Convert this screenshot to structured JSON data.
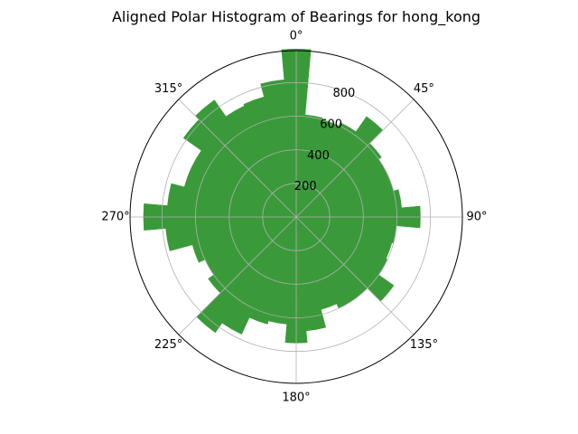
{
  "chart_data": {
    "type": "polar-bar",
    "title": "Aligned Polar Histogram of Bearings for hong_kong",
    "theta_zero": "N",
    "theta_direction": "clockwise",
    "angle_tick_labels": [
      "0°",
      "45°",
      "90°",
      "135°",
      "180°",
      "225°",
      "270°",
      "315°"
    ],
    "angle_ticks_deg": [
      0,
      45,
      90,
      135,
      180,
      225,
      270,
      315
    ],
    "radial_tick_labels": [
      "200",
      "400",
      "600",
      "800"
    ],
    "radial_ticks": [
      200,
      400,
      600,
      800
    ],
    "rlim": [
      0,
      990
    ],
    "grid": true,
    "bar_color": "#3a9a3a",
    "bin_width_deg": 10,
    "bin_centers_deg": [
      0,
      10,
      20,
      30,
      40,
      50,
      60,
      70,
      80,
      90,
      100,
      110,
      120,
      130,
      140,
      150,
      160,
      170,
      180,
      190,
      200,
      210,
      220,
      230,
      240,
      250,
      260,
      270,
      280,
      290,
      300,
      310,
      320,
      330,
      340,
      350
    ],
    "values": [
      1000,
      610,
      600,
      620,
      730,
      620,
      600,
      600,
      630,
      740,
      600,
      590,
      600,
      710,
      600,
      600,
      570,
      680,
      750,
      640,
      660,
      770,
      840,
      640,
      600,
      640,
      780,
      910,
      770,
      690,
      690,
      820,
      850,
      730,
      740,
      820
    ]
  }
}
